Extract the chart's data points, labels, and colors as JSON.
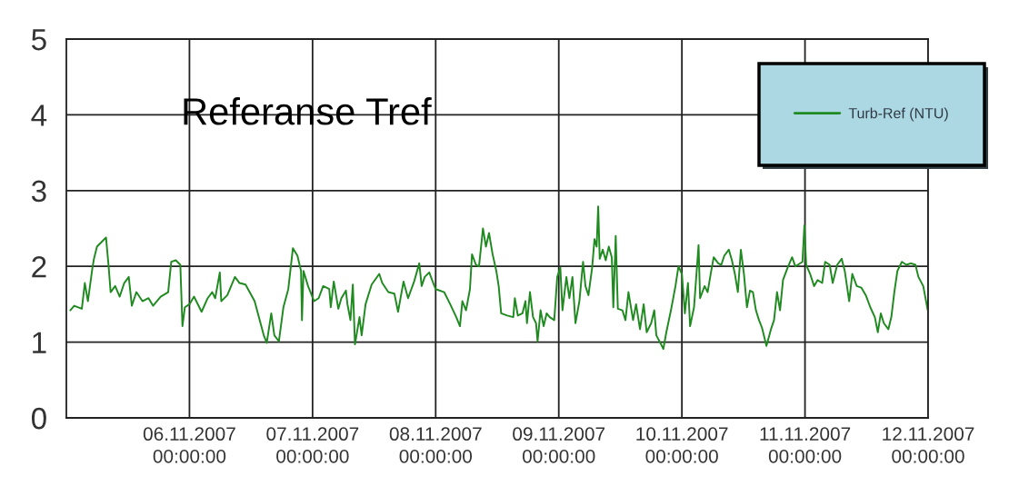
{
  "chart_data": {
    "type": "line",
    "annotations": [
      "Referanse Tref"
    ],
    "xlim": [
      "2007-11-05T00:00",
      "2007-11-12T00:00"
    ],
    "xticks": [
      {
        "value": "2007-11-06",
        "label": "06.11.2007 00:00:00"
      },
      {
        "value": "2007-11-07",
        "label": "07.11.2007 00:00:00"
      },
      {
        "value": "2007-11-08",
        "label": "08.11.2007 00:00:00"
      },
      {
        "value": "2007-11-09",
        "label": "09.11.2007 00:00:00"
      },
      {
        "value": "2007-11-10",
        "label": "10.11.2007 00:00:00"
      },
      {
        "value": "2007-11-11",
        "label": "11.11.2007 00:00:00"
      },
      {
        "value": "2007-11-12",
        "label": "12.11.2007 00:00:00"
      }
    ],
    "ylim": [
      0,
      5
    ],
    "yticks": [
      0,
      1,
      2,
      3,
      4,
      5
    ],
    "grid": true,
    "legend": "top right",
    "x": [
      "2007-11-05T00:46",
      "2007-11-05T01:32",
      "2007-11-05T03:01",
      "2007-11-05T03:36",
      "2007-11-05T04:12",
      "2007-11-05T05:05",
      "2007-11-05T05:23",
      "2007-11-05T05:58",
      "2007-11-05T06:51",
      "2007-11-05T07:44",
      "2007-11-05T08:13",
      "2007-11-05T08:38",
      "2007-11-05T09:31",
      "2007-11-05T10:24",
      "2007-11-05T11:17",
      "2007-11-05T12:10",
      "2007-11-05T12:46",
      "2007-11-05T13:39",
      "2007-11-05T14:50",
      "2007-11-05T16:01",
      "2007-11-05T16:54",
      "2007-11-05T18:23",
      "2007-11-05T19:51",
      "2007-11-05T20:27",
      "2007-11-05T21:20",
      "2007-11-05T22:13",
      "2007-11-05T22:38",
      "2007-11-05T23:06",
      "2007-11-06T00:00",
      "2007-11-06T00:53",
      "2007-11-06T02:22",
      "2007-11-06T03:33",
      "2007-11-06T04:26",
      "2007-11-06T05:01",
      "2007-11-06T05:55",
      "2007-11-06T06:12",
      "2007-11-06T07:23",
      "2007-11-06T08:52",
      "2007-11-06T09:45",
      "2007-11-06T10:56",
      "2007-11-06T12:42",
      "2007-11-06T14:29",
      "2007-11-06T15:04",
      "2007-11-06T15:57",
      "2007-11-06T16:33",
      "2007-11-06T17:26",
      "2007-11-06T18:19",
      "2007-11-06T19:16",
      "2007-11-06T20:10",
      "2007-11-06T21:03",
      "2007-11-06T21:45",
      "2007-11-06T21:56",
      "2007-11-06T22:14",
      "2007-11-06T23:07",
      "2007-11-07T00:18",
      "2007-11-07T01:11",
      "2007-11-07T02:04",
      "2007-11-07T03:15",
      "2007-11-07T03:33",
      "2007-11-07T04:08",
      "2007-11-07T05:01",
      "2007-11-07T05:37",
      "2007-11-07T06:30",
      "2007-11-07T06:48",
      "2007-11-07T07:23",
      "2007-11-07T07:51",
      "2007-11-07T08:16",
      "2007-11-07T09:09",
      "2007-11-07T09:34",
      "2007-11-07T10:20",
      "2007-11-07T11:31",
      "2007-11-07T13:00",
      "2007-11-07T13:35",
      "2007-11-07T14:46",
      "2007-11-07T15:57",
      "2007-11-07T16:40",
      "2007-11-07T17:44",
      "2007-11-07T18:37",
      "2007-11-07T19:48",
      "2007-11-07T20:48",
      "2007-11-07T21:16",
      "2007-11-07T21:52",
      "2007-11-07T22:45",
      "2007-11-07T23:38",
      "2007-11-08T00:00",
      "2007-11-08T01:39",
      "2007-11-08T02:50",
      "2007-11-08T04:01",
      "2007-11-08T04:44",
      "2007-11-08T05:12",
      "2007-11-08T05:55",
      "2007-11-08T06:41",
      "2007-11-08T07:05",
      "2007-11-08T07:51",
      "2007-11-08T08:27",
      "2007-11-08T09:13",
      "2007-11-08T09:48",
      "2007-11-08T10:24",
      "2007-11-08T11:06",
      "2007-11-08T11:49",
      "2007-11-08T12:17",
      "2007-11-08T12:46",
      "2007-11-08T13:57",
      "2007-11-08T15:08",
      "2007-11-08T15:26",
      "2007-11-08T16:01",
      "2007-11-08T16:55",
      "2007-11-08T17:30",
      "2007-11-08T17:48",
      "2007-11-08T18:23",
      "2007-11-08T18:59",
      "2007-11-08T19:34",
      "2007-11-08T19:52",
      "2007-11-08T20:27",
      "2007-11-08T21:03",
      "2007-11-08T21:38",
      "2007-11-08T22:14",
      "2007-11-08T23:07",
      "2007-11-08T23:42",
      "2007-11-09T00:18",
      "2007-11-09T00:43",
      "2007-11-09T01:29",
      "2007-11-09T02:04",
      "2007-11-09T02:40",
      "2007-11-09T03:15",
      "2007-11-09T04:01",
      "2007-11-09T04:44",
      "2007-11-09T05:12",
      "2007-11-09T05:47",
      "2007-11-09T06:30",
      "2007-11-09T06:58",
      "2007-11-09T07:23",
      "2007-11-09T07:41",
      "2007-11-09T07:59",
      "2007-11-09T08:34",
      "2007-11-09T09:09",
      "2007-11-09T09:45",
      "2007-11-09T10:20",
      "2007-11-09T10:38",
      "2007-11-09T11:06",
      "2007-11-09T11:31",
      "2007-11-09T12:24",
      "2007-11-09T13:00",
      "2007-11-09T13:35",
      "2007-11-09T14:29",
      "2007-11-09T15:04",
      "2007-11-09T15:50",
      "2007-11-09T16:33",
      "2007-11-09T17:08",
      "2007-11-09T18:01",
      "2007-11-09T18:37",
      "2007-11-09T19:01",
      "2007-11-09T19:48",
      "2007-11-09T20:23",
      "2007-11-09T20:58",
      "2007-11-09T21:52",
      "2007-11-09T22:45",
      "2007-11-09T23:20",
      "2007-11-10T00:00",
      "2007-11-10T00:35",
      "2007-11-10T01:11",
      "2007-11-10T01:36",
      "2007-11-10T02:22",
      "2007-11-10T03:15",
      "2007-11-10T03:33",
      "2007-11-10T04:26",
      "2007-11-10T05:01",
      "2007-11-10T05:37",
      "2007-11-10T06:12",
      "2007-11-10T07:05",
      "2007-11-10T07:41",
      "2007-11-10T08:16",
      "2007-11-10T09:09",
      "2007-11-10T09:45",
      "2007-11-10T10:20",
      "2007-11-10T10:55",
      "2007-11-10T11:30",
      "2007-11-10T12:06",
      "2007-11-10T12:41",
      "2007-11-10T13:16",
      "2007-11-10T13:51",
      "2007-11-10T14:26",
      "2007-11-10T15:02",
      "2007-11-10T15:37",
      "2007-11-10T16:29",
      "2007-11-10T17:22",
      "2007-11-10T17:58",
      "2007-11-10T18:33",
      "2007-11-10T19:08",
      "2007-11-10T19:43",
      "2007-11-10T20:36",
      "2007-11-10T21:29",
      "2007-11-10T22:07",
      "2007-11-10T23:30",
      "2007-11-10T23:53",
      "2007-11-11T00:14",
      "2007-11-11T01:00",
      "2007-11-11T01:46",
      "2007-11-11T02:28",
      "2007-11-11T03:21",
      "2007-11-11T03:56",
      "2007-11-11T04:49",
      "2007-11-11T05:24",
      "2007-11-11T06:17",
      "2007-11-11T07:09",
      "2007-11-11T07:45",
      "2007-11-11T08:37",
      "2007-11-11T09:13",
      "2007-11-11T10:05",
      "2007-11-11T10:58",
      "2007-11-11T11:51",
      "2007-11-11T12:44",
      "2007-11-11T13:37",
      "2007-11-11T14:12",
      "2007-11-11T14:47",
      "2007-11-11T15:22",
      "2007-11-11T16:15",
      "2007-11-11T16:50",
      "2007-11-11T17:25",
      "2007-11-11T18:01",
      "2007-11-11T18:53",
      "2007-11-11T19:46",
      "2007-11-11T20:39",
      "2007-11-11T21:32",
      "2007-11-11T22:07",
      "2007-11-11T23:03",
      "2007-11-11T23:56"
    ],
    "series": [
      {
        "name": "Turb-Ref (NTU)",
        "color": "#1f8a1f",
        "values": [
          1.42,
          1.48,
          1.44,
          1.78,
          1.54,
          1.98,
          2.1,
          2.26,
          2.32,
          2.38,
          2.02,
          1.66,
          1.74,
          1.6,
          1.78,
          1.86,
          1.48,
          1.66,
          1.54,
          1.58,
          1.48,
          1.6,
          1.66,
          2.06,
          2.08,
          2.02,
          1.21,
          1.46,
          1.5,
          1.6,
          1.4,
          1.58,
          1.66,
          1.58,
          1.92,
          1.54,
          1.62,
          1.86,
          1.78,
          1.76,
          1.54,
          1.09,
          0.99,
          1.38,
          1.09,
          1.01,
          1.46,
          1.7,
          2.24,
          2.14,
          1.94,
          1.29,
          1.94,
          1.74,
          1.54,
          1.58,
          1.74,
          1.7,
          1.46,
          1.8,
          1.44,
          1.58,
          1.68,
          1.5,
          1.29,
          1.76,
          0.97,
          1.33,
          1.09,
          1.5,
          1.76,
          1.9,
          1.78,
          1.66,
          1.64,
          1.4,
          1.8,
          1.58,
          1.8,
          2.04,
          1.74,
          1.86,
          1.92,
          1.76,
          1.7,
          1.66,
          1.5,
          1.33,
          1.21,
          1.54,
          1.42,
          1.7,
          2.16,
          2.02,
          2.0,
          2.5,
          2.26,
          2.44,
          2.16,
          1.94,
          1.74,
          1.38,
          1.35,
          1.33,
          1.58,
          1.35,
          1.38,
          1.54,
          1.25,
          1.66,
          1.33,
          1.25,
          1.01,
          1.42,
          1.21,
          1.38,
          1.33,
          1.29,
          1.86,
          1.98,
          1.42,
          1.86,
          1.58,
          1.86,
          1.25,
          1.54,
          2.06,
          1.74,
          1.62,
          1.98,
          2.36,
          2.26,
          2.79,
          2.1,
          2.22,
          2.08,
          2.26,
          2.12,
          1.46,
          2.4,
          1.44,
          1.42,
          1.29,
          1.66,
          1.29,
          1.5,
          1.17,
          1.5,
          1.13,
          1.25,
          1.42,
          1.09,
          0.99,
          0.91,
          1.13,
          1.42,
          1.74,
          2.0,
          1.9,
          1.38,
          1.78,
          1.21,
          1.46,
          2.28,
          1.58,
          1.74,
          1.66,
          1.9,
          2.12,
          2.04,
          2.02,
          2.14,
          2.22,
          2.08,
          1.9,
          1.66,
          2.22,
          1.9,
          1.46,
          1.68,
          1.66,
          1.42,
          1.29,
          1.19,
          0.95,
          1.17,
          1.29,
          1.66,
          1.42,
          1.82,
          1.98,
          2.12,
          2.0,
          2.06,
          2.54,
          2.02,
          1.9,
          1.74,
          1.82,
          1.78,
          2.06,
          2.02,
          1.78,
          2.02,
          2.1,
          1.94,
          1.54,
          1.9,
          1.74,
          1.72,
          1.62,
          1.46,
          1.33,
          1.13,
          1.38,
          1.25,
          1.17,
          1.33,
          1.66,
          1.94,
          2.06,
          2.02,
          2.04,
          2.02,
          1.86,
          1.74,
          1.42
        ]
      }
    ]
  }
}
